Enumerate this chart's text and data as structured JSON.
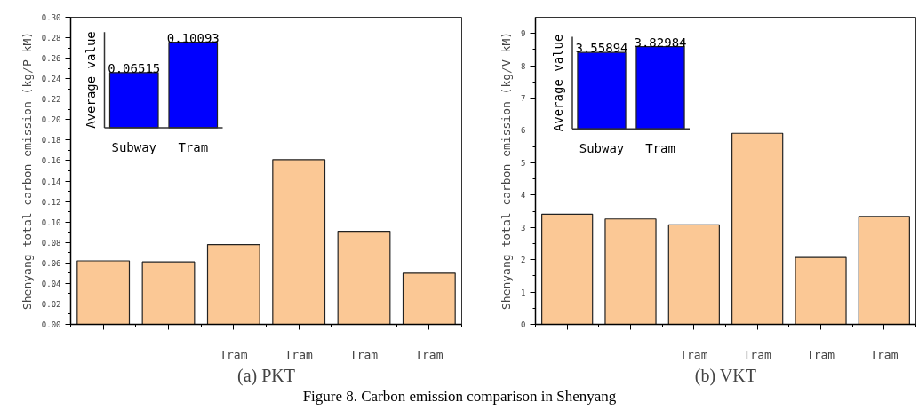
{
  "chart_data": [
    {
      "type": "bar",
      "categories": [
        null,
        null,
        "Tram",
        "Tram",
        "Tram",
        "Tram"
      ],
      "values": [
        0.062,
        0.061,
        0.078,
        0.161,
        0.091,
        0.05
      ],
      "color": "#fbc895",
      "ylabel": "Shenyang total carbon emission (kg/P-kM)",
      "xlabel": "(a) PKT",
      "ylim": [
        0,
        0.3
      ],
      "yticks": [
        {
          "value": 0,
          "label": "0.00"
        },
        0.02,
        0.04,
        0.06,
        0.08,
        {
          "value": 0.1,
          "label": "0.10"
        },
        0.12,
        0.14,
        0.16,
        0.18,
        {
          "value": 0.2,
          "label": "0.20"
        },
        0.22,
        0.24,
        0.26,
        0.28,
        {
          "value": 0.3,
          "label": "0.30"
        }
      ],
      "annotations": [
        "Figure 8. Carbon emission comparison in Shenyang"
      ]
    },
    {
      "type": "bar",
      "categories": [
        "Subway",
        "Tram"
      ],
      "values": [
        0.06515,
        0.10093
      ],
      "color": "#0000ff",
      "ylabel": "Average value",
      "data_labels": true,
      "tick_labels": "x"
    },
    {
      "type": "bar",
      "categories": [
        null,
        null,
        "Tram",
        "Tram",
        "Tram",
        "Tram"
      ],
      "values": [
        3.41,
        3.26,
        3.08,
        5.91,
        2.07,
        3.34
      ],
      "color": "#fbc895",
      "ylabel": "Shenyang total carbon emission (kg/V-kM)",
      "xlabel": "(b) VKT",
      "ylim": [
        0,
        9.5
      ],
      "yticks": [
        0,
        1,
        2,
        3,
        4,
        5,
        6,
        7,
        8,
        9
      ]
    },
    {
      "type": "bar",
      "categories": [
        "Subway",
        "Tram"
      ],
      "values": [
        3.55894,
        3.82984
      ],
      "color": "#0000ff",
      "ylabel": "Average value",
      "data_labels": true,
      "tick_labels": "x"
    }
  ]
}
